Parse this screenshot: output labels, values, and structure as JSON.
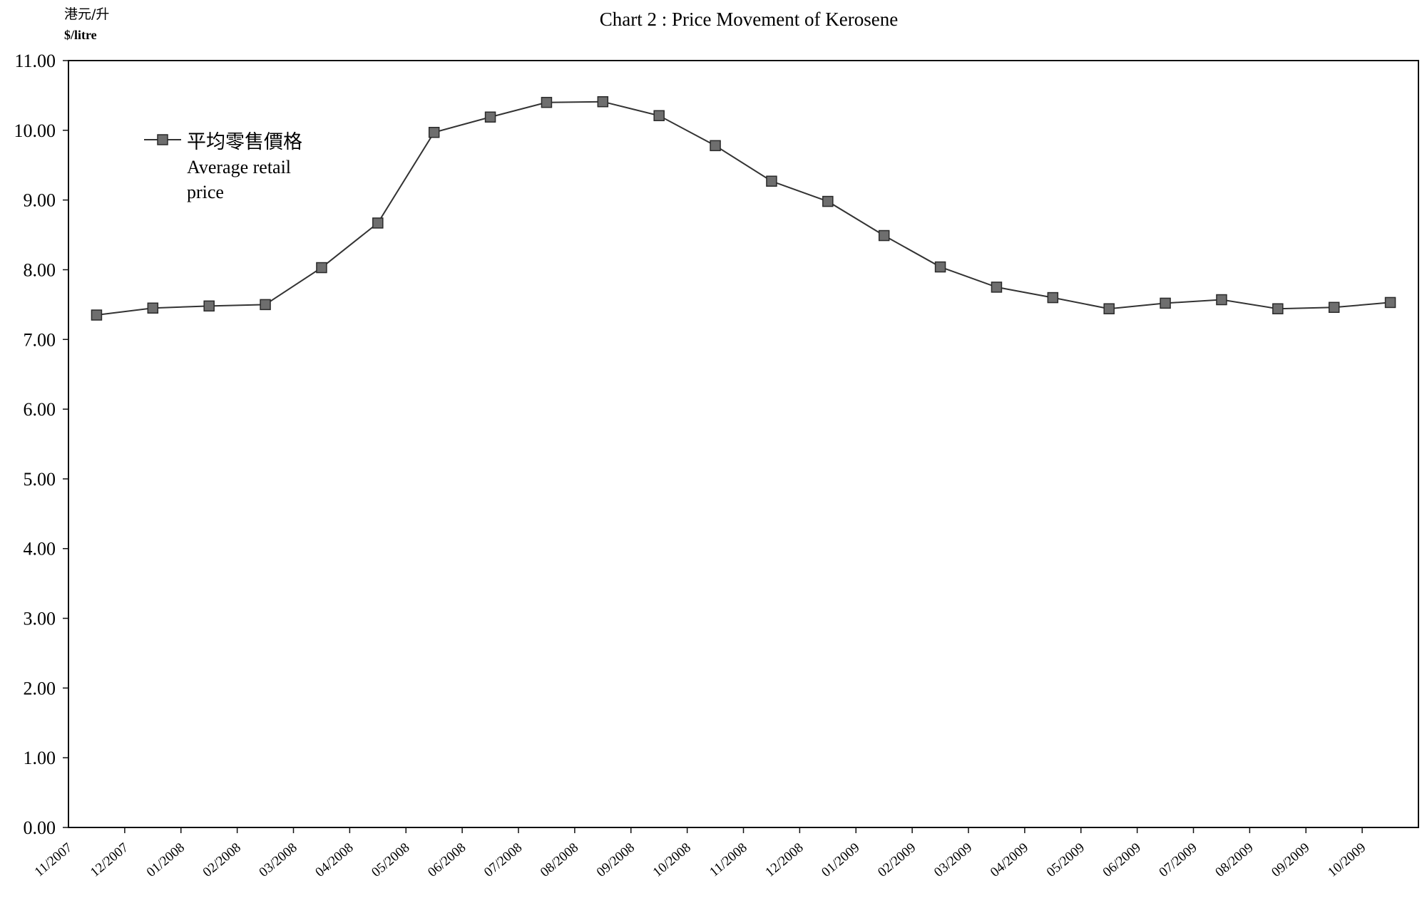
{
  "chart_data": {
    "type": "line",
    "title": "Chart 2 :  Price Movement of Kerosene",
    "y_unit_cn": "港元/升",
    "y_unit_en": "$/litre",
    "ylim": [
      0,
      11
    ],
    "yticks": [
      "0.00",
      "1.00",
      "2.00",
      "3.00",
      "4.00",
      "5.00",
      "6.00",
      "7.00",
      "8.00",
      "9.00",
      "10.00",
      "11.00"
    ],
    "categories": [
      "11/2007",
      "12/2007",
      "01/2008",
      "02/2008",
      "03/2008",
      "04/2008",
      "05/2008",
      "06/2008",
      "07/2008",
      "08/2008",
      "09/2008",
      "10/2008",
      "11/2008",
      "12/2008",
      "01/2009",
      "02/2009",
      "03/2009",
      "04/2009",
      "05/2009",
      "06/2009",
      "07/2009",
      "08/2009",
      "09/2009",
      "10/2009"
    ],
    "series": [
      {
        "name_cn": "平均零售價格",
        "name_en_line1": "Average retail",
        "name_en_line2": "price",
        "values": [
          7.35,
          7.45,
          7.48,
          7.5,
          8.03,
          8.67,
          9.97,
          10.19,
          10.4,
          10.41,
          10.21,
          9.78,
          9.27,
          8.98,
          8.49,
          8.04,
          7.75,
          7.6,
          7.44,
          7.52,
          7.57,
          7.44,
          7.46,
          7.53
        ]
      }
    ],
    "grid": false,
    "legend_position": "top-left",
    "colors": {
      "line": "#333333",
      "marker": "#6e6e6e",
      "marker_edge": "#2a2a2a",
      "axis": "#111111"
    }
  }
}
